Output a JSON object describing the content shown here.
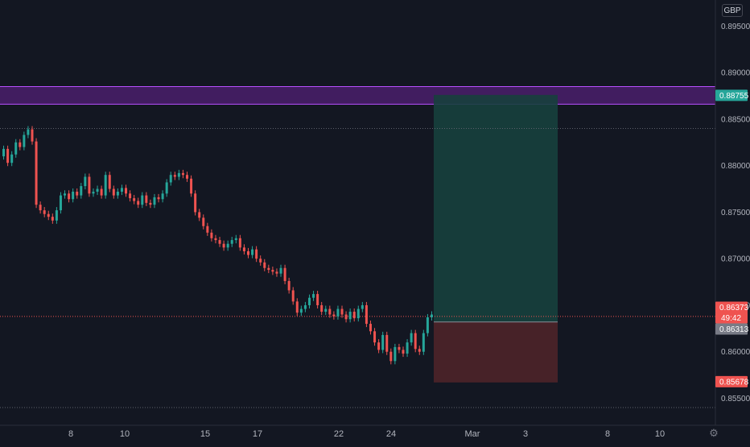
{
  "currency": "GBP",
  "colors": {
    "background": "#131722",
    "up": "#26a69a",
    "down": "#ef5350",
    "zone_fill": "#4a1f6b",
    "zone_line": "#b84fff",
    "profit_fill": "#17403d",
    "loss_fill": "#4a2329",
    "grid_dot": "#5d606b"
  },
  "chart_data": {
    "type": "candlestick",
    "ylim": [
      0.8521,
      0.8978
    ],
    "price_ticks": [
      "0.89500",
      "0.89000",
      "0.88500",
      "0.88000",
      "0.87500",
      "0.87000",
      "0.86500",
      "0.86000",
      "0.85500"
    ],
    "time_labels": [
      "8",
      "10",
      "15",
      "17",
      "22",
      "24",
      "Mar",
      "3",
      "8",
      "10"
    ],
    "tags": [
      {
        "text": "0.88755",
        "color": "#26a69a"
      },
      {
        "text": "0.86373",
        "color": "#ef5350"
      },
      {
        "text": "49:42",
        "color": "#ef5350"
      },
      {
        "text": "0.86313",
        "color": "#787b86"
      },
      {
        "text": "0.85678",
        "color": "#ef5350"
      }
    ],
    "zone": {
      "top": 0.8885,
      "bottom": 0.8866
    },
    "position": {
      "target": 0.8876,
      "entry": 0.8632,
      "stop": 0.8567
    },
    "horizontal_levels": [
      0.884,
      0.8638,
      0.854
    ],
    "closes": [
      0.8818,
      0.8803,
      0.8812,
      0.8825,
      0.882,
      0.8833,
      0.8839,
      0.8826,
      0.8758,
      0.8752,
      0.8748,
      0.8745,
      0.8741,
      0.8752,
      0.8768,
      0.877,
      0.8764,
      0.8772,
      0.8768,
      0.8778,
      0.8788,
      0.877,
      0.8772,
      0.8775,
      0.8768,
      0.879,
      0.8775,
      0.8768,
      0.8772,
      0.8776,
      0.877,
      0.8765,
      0.8762,
      0.8758,
      0.8768,
      0.876,
      0.8758,
      0.8766,
      0.8764,
      0.877,
      0.8782,
      0.879,
      0.8788,
      0.8792,
      0.879,
      0.8786,
      0.877,
      0.875,
      0.8744,
      0.8735,
      0.8728,
      0.8722,
      0.872,
      0.8716,
      0.8712,
      0.8716,
      0.872,
      0.8722,
      0.8712,
      0.8708,
      0.8704,
      0.871,
      0.87,
      0.8696,
      0.869,
      0.8688,
      0.8686,
      0.8684,
      0.869,
      0.8676,
      0.8666,
      0.8654,
      0.8642,
      0.8646,
      0.865,
      0.8658,
      0.8662,
      0.865,
      0.8643,
      0.8646,
      0.864,
      0.8638,
      0.8646,
      0.864,
      0.8635,
      0.8643,
      0.8636,
      0.8646,
      0.865,
      0.863,
      0.8622,
      0.861,
      0.8602,
      0.8618,
      0.86,
      0.859,
      0.8605,
      0.8602,
      0.8598,
      0.861,
      0.862,
      0.8603,
      0.86,
      0.862,
      0.8637,
      0.864
    ]
  }
}
